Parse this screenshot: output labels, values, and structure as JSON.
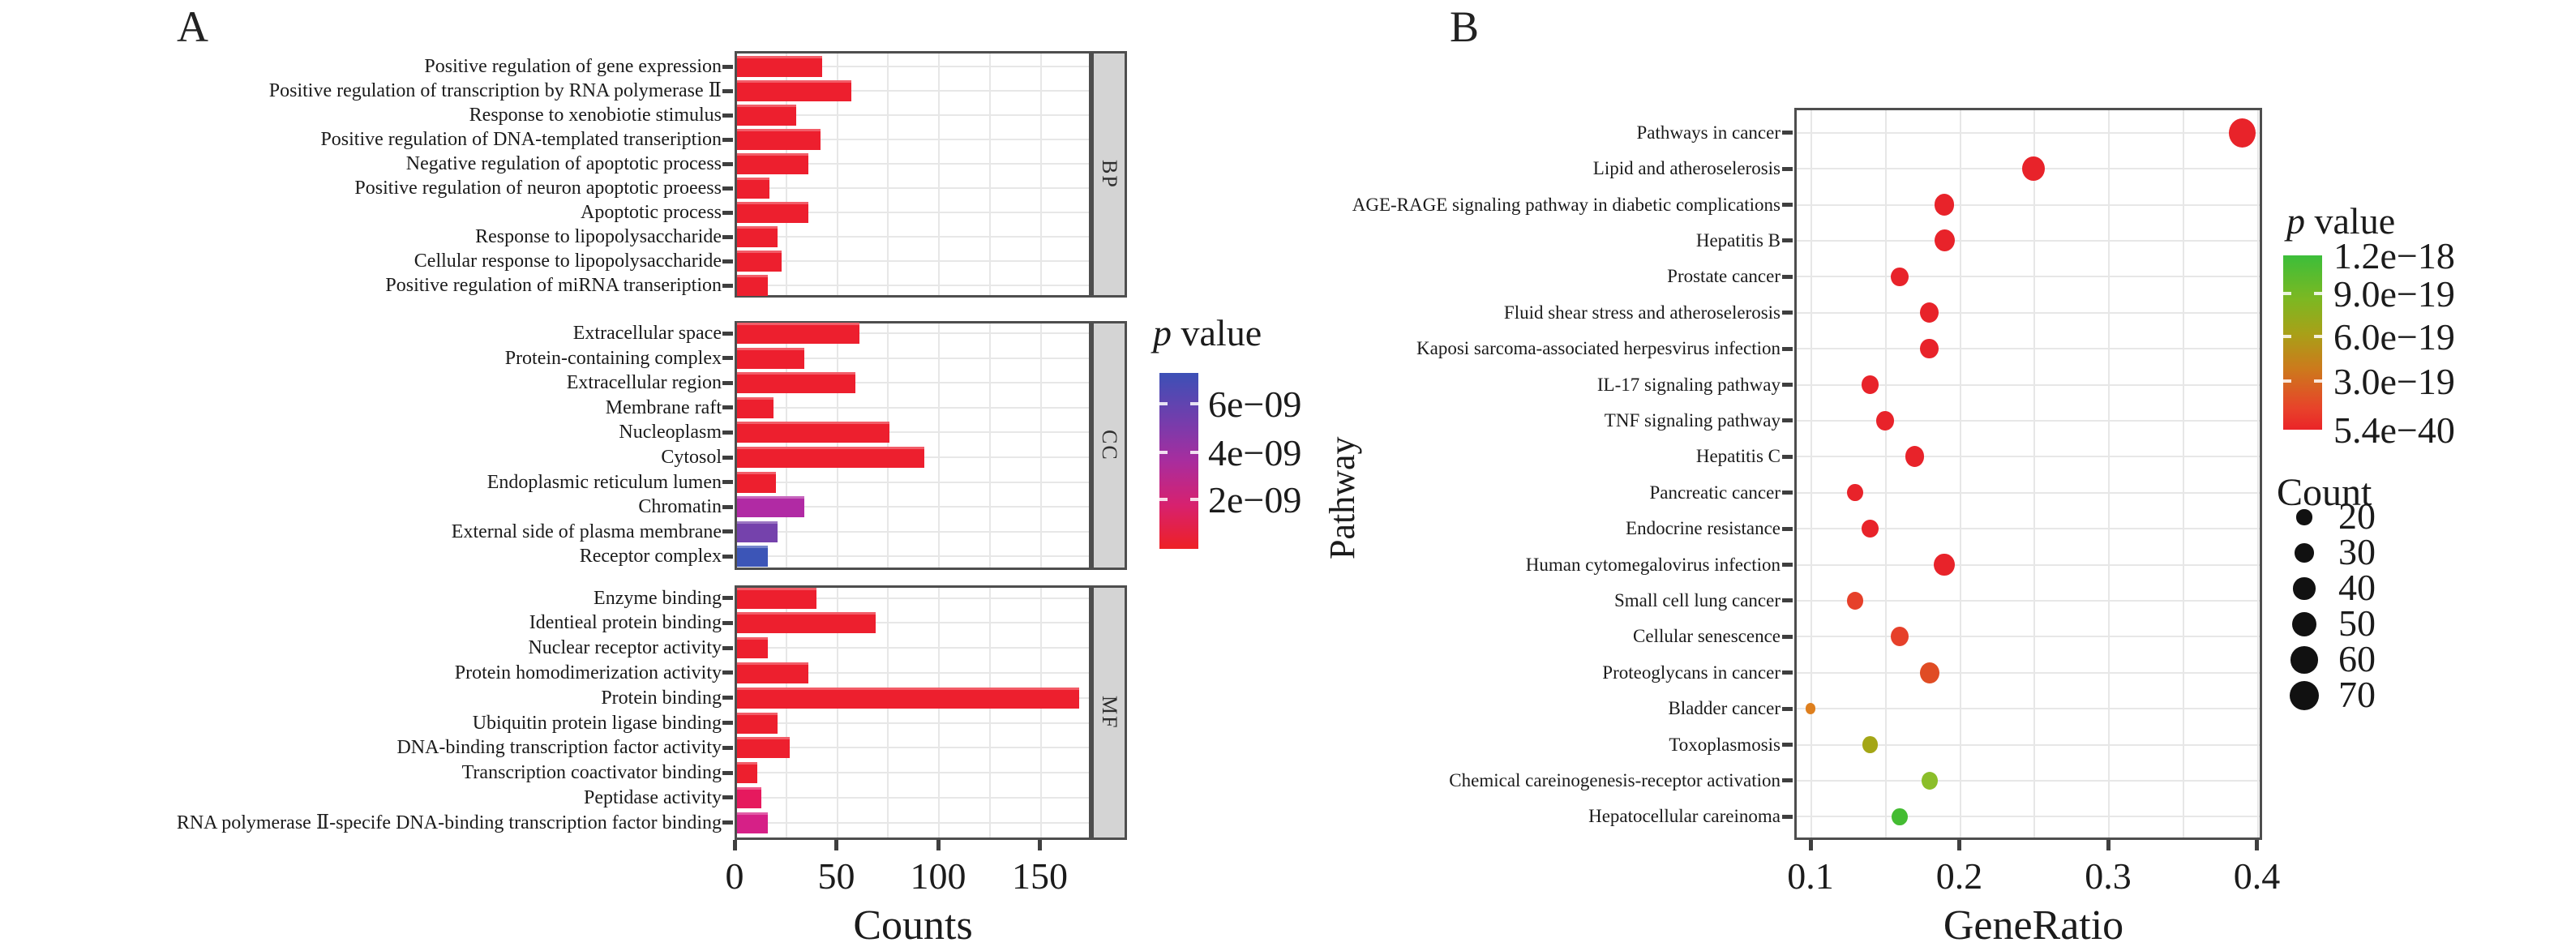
{
  "figure": {
    "panel_a_label": "A",
    "panel_b_label": "B"
  },
  "chart_data": [
    {
      "id": "A",
      "type": "bar",
      "xlabel": "Counts",
      "x_ticks": [
        "0",
        "50",
        "100",
        "150"
      ],
      "xlim": [
        0,
        175
      ],
      "legend": {
        "title_italic": "p",
        "title_rest": " value",
        "ticks": [
          "6e−09",
          "4e−09",
          "2e−09"
        ],
        "gradient": [
          "#3C50B6",
          "#7A3BAB",
          "#A82D9E",
          "#D7216F",
          "#EE2125"
        ]
      },
      "facets": [
        {
          "label": "BP",
          "bars": [
            {
              "term": "Positive regulation of gene expression",
              "count": 42,
              "color": "#ED1F2E"
            },
            {
              "term": "Positive regulation of transcription by RNA polymerase Ⅱ",
              "count": 56,
              "color": "#ED1F2E"
            },
            {
              "term": "Response to xenobiotie stimulus",
              "count": 29,
              "color": "#ED1F2E"
            },
            {
              "term": "Positive regulation of DNA-templated transeription",
              "count": 41,
              "color": "#ED1F2E"
            },
            {
              "term": "Negative regulation of apoptotic process",
              "count": 35,
              "color": "#ED1F2E"
            },
            {
              "term": "Positive regulation of neuron apoptotic proeess",
              "count": 16,
              "color": "#ED1F2E"
            },
            {
              "term": "Apoptotic process",
              "count": 35,
              "color": "#ED1F2E"
            },
            {
              "term": "Response to lipopolysaccharide",
              "count": 20,
              "color": "#ED1F2E"
            },
            {
              "term": "Cellular response to lipopolysaccharide",
              "count": 22,
              "color": "#ED1F2E"
            },
            {
              "term": "Positive regulation of miRNA transeription",
              "count": 15,
              "color": "#ED1F2E"
            }
          ]
        },
        {
          "label": "CC",
          "bars": [
            {
              "term": "Extracellular space",
              "count": 60,
              "color": "#ED1F2E"
            },
            {
              "term": "Protein-containing complex",
              "count": 33,
              "color": "#ED1F2E"
            },
            {
              "term": "Extracellular region",
              "count": 58,
              "color": "#ED1F2E"
            },
            {
              "term": "Membrane raft",
              "count": 18,
              "color": "#ED1F2E"
            },
            {
              "term": "Nucleoplasm",
              "count": 75,
              "color": "#ED1F2E"
            },
            {
              "term": "Cytosol",
              "count": 92,
              "color": "#ED1F2E"
            },
            {
              "term": "Endoplasmic reticulum lumen",
              "count": 19,
              "color": "#ED1F2E"
            },
            {
              "term": "Chromatin",
              "count": 33,
              "color": "#B12AA4"
            },
            {
              "term": "External side of plasma membrane",
              "count": 20,
              "color": "#7542AC"
            },
            {
              "term": "Receptor complex",
              "count": 15,
              "color": "#3C55B7"
            }
          ]
        },
        {
          "label": "MF",
          "bars": [
            {
              "term": "Enzyme binding",
              "count": 39,
              "color": "#ED1F2E"
            },
            {
              "term": "Identieal protein binding",
              "count": 68,
              "color": "#ED1F2E"
            },
            {
              "term": "Nuclear receptor activity",
              "count": 15,
              "color": "#ED1F2E"
            },
            {
              "term": "Protein homodimerization activity",
              "count": 35,
              "color": "#ED1F2E"
            },
            {
              "term": "Protein binding",
              "count": 168,
              "color": "#ED1F2E"
            },
            {
              "term": "Ubiquitin protein ligase binding",
              "count": 20,
              "color": "#ED1F2E"
            },
            {
              "term": "DNA-binding transcription factor activity",
              "count": 26,
              "color": "#ED1F2E"
            },
            {
              "term": "Transcription coactivator binding",
              "count": 10,
              "color": "#ED1F2E"
            },
            {
              "term": "Peptidase activity",
              "count": 12,
              "color": "#E6195E"
            },
            {
              "term": "RNA polymerase Ⅱ-specife DNA-binding transcription factor binding",
              "count": 15,
              "color": "#D62087"
            }
          ]
        }
      ]
    },
    {
      "id": "B",
      "type": "scatter",
      "xlabel": "GeneRatio",
      "ylabel": "Pathway",
      "x_ticks": [
        "0.1",
        "0.2",
        "0.3",
        "0.4"
      ],
      "xlim": [
        0.09,
        0.41
      ],
      "legend_p": {
        "title_italic": "p",
        "title_rest": " value",
        "ticks": [
          "1.2e−18",
          "9.0e−19",
          "6.0e−19",
          "3.0e−19",
          "5.4e−40"
        ],
        "gradient": [
          "#3CBE3A",
          "#7CB822",
          "#A8A018",
          "#CC7A1C",
          "#E8422A",
          "#EA2428"
        ]
      },
      "legend_count": {
        "title": "Count",
        "sizes": [
          "20",
          "30",
          "40",
          "50",
          "60",
          "70"
        ]
      },
      "points": [
        {
          "pathway": "Pathways in cancer",
          "gene_ratio": 0.39,
          "count": 70,
          "color": "#E8232A"
        },
        {
          "pathway": "Lipid and atheroselerosis",
          "gene_ratio": 0.25,
          "count": 50,
          "color": "#E8232A"
        },
        {
          "pathway": "AGE-RAGE signaling pathway in diabetic complications",
          "gene_ratio": 0.19,
          "count": 38,
          "color": "#E8232A"
        },
        {
          "pathway": "Hepatitis B",
          "gene_ratio": 0.19,
          "count": 40,
          "color": "#E8232A"
        },
        {
          "pathway": "Prostate cancer",
          "gene_ratio": 0.16,
          "count": 30,
          "color": "#E8232A"
        },
        {
          "pathway": "Fluid shear stress and atheroselerosis",
          "gene_ratio": 0.18,
          "count": 34,
          "color": "#E8232A"
        },
        {
          "pathway": "Kaposi sarcoma-associated herpesvirus infection",
          "gene_ratio": 0.18,
          "count": 33,
          "color": "#E8232A"
        },
        {
          "pathway": "IL-17 signaling pathway",
          "gene_ratio": 0.14,
          "count": 27,
          "color": "#E8232A"
        },
        {
          "pathway": "TNF signaling pathway",
          "gene_ratio": 0.15,
          "count": 30,
          "color": "#E8232A"
        },
        {
          "pathway": "Hepatitis C",
          "gene_ratio": 0.17,
          "count": 36,
          "color": "#E8232A"
        },
        {
          "pathway": "Pancreatic cancer",
          "gene_ratio": 0.13,
          "count": 25,
          "color": "#E8232A"
        },
        {
          "pathway": "Endocrine resistance",
          "gene_ratio": 0.14,
          "count": 27,
          "color": "#E8232A"
        },
        {
          "pathway": "Human cytomegalovirus infection",
          "gene_ratio": 0.19,
          "count": 42,
          "color": "#E8232A"
        },
        {
          "pathway": "Small cell lung cancer",
          "gene_ratio": 0.13,
          "count": 25,
          "color": "#E6402A"
        },
        {
          "pathway": "Cellular senescence",
          "gene_ratio": 0.16,
          "count": 32,
          "color": "#E6402A"
        },
        {
          "pathway": "Proteoglycans in cancer",
          "gene_ratio": 0.18,
          "count": 36,
          "color": "#E04C24"
        },
        {
          "pathway": "Bladder cancer",
          "gene_ratio": 0.1,
          "count": 10,
          "color": "#DE7F1E"
        },
        {
          "pathway": "Toxoplasmosis",
          "gene_ratio": 0.14,
          "count": 22,
          "color": "#A4A616"
        },
        {
          "pathway": "Chemical careinogenesis-receptor activation",
          "gene_ratio": 0.18,
          "count": 27,
          "color": "#8BBE2A"
        },
        {
          "pathway": "Hepatocellular careinoma",
          "gene_ratio": 0.16,
          "count": 24,
          "color": "#44BC32"
        }
      ]
    }
  ]
}
